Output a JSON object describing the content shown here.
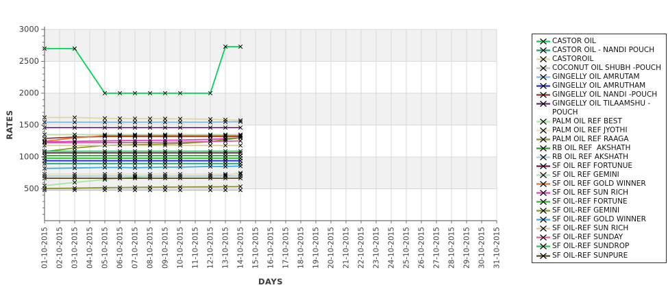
{
  "chart_data": {
    "type": "line",
    "title": "",
    "xlabel": "DAYS",
    "ylabel": "RATES",
    "x_categories": [
      "01-10-2015",
      "02-10-2015",
      "03-10-2015",
      "04-10-2015",
      "05-10-2015",
      "06-10-2015",
      "07-10-2015",
      "08-10-2015",
      "09-10-2015",
      "10-10-2015",
      "11-10-2015",
      "12-10-2015",
      "13-10-2015",
      "14-10-2015",
      "15-10-2015",
      "16-10-2015",
      "17-10-2015",
      "18-10-2015",
      "19-10-2015",
      "20-10-2015",
      "21-10-2015",
      "22-10-2015",
      "23-10-2015",
      "24-10-2015",
      "25-10-2015",
      "26-10-2015",
      "27-10-2015",
      "28-10-2015",
      "29-10-2015",
      "30-10-2015",
      "31-10-2015"
    ],
    "data_days": [
      1,
      3,
      5,
      6,
      7,
      8,
      9,
      10,
      12,
      13,
      14
    ],
    "ylim": [
      0,
      3000
    ],
    "yticks": [
      500,
      1000,
      1500,
      2000,
      2500,
      3000
    ],
    "y_minor_step": 100,
    "shaded_bands": [
      [
        500,
        1000
      ],
      [
        1500,
        2000
      ],
      [
        2500,
        3000
      ]
    ],
    "marker": "x",
    "marker_color": "#000000",
    "band_color": "#f1f1f1",
    "grid_color": "#d8d8d8",
    "axis_color": "#6e6e6e",
    "tick_label_color": "#3d3d3d",
    "legend_position": "right",
    "series": [
      {
        "name": "CASTOR OIL",
        "color": "#00d455",
        "values": [
          2700,
          2700,
          2000,
          2000,
          2000,
          2000,
          2000,
          2000,
          2000,
          2730,
          2730
        ]
      },
      {
        "name": "CASTOR OIL - NANDI POUCH",
        "color": "#1f9e74",
        "values": [
          895,
          895,
          895,
          895,
          895,
          895,
          895,
          895,
          895,
          895,
          895
        ]
      },
      {
        "name": "CASTOROIL",
        "color": "#e2d6a0",
        "values": [
          1620,
          1618,
          1606,
          1603,
          1601,
          1600,
          1599,
          1598,
          1592,
          1583,
          1574
        ]
      },
      {
        "name": "COCONUT OIL SHUBH -POUCH",
        "color": "#b9c2c4",
        "values": [
          480,
          480,
          480,
          480,
          480,
          480,
          480,
          480,
          480,
          480,
          480
        ]
      },
      {
        "name": "GINGELLY OIL AMRUTAM",
        "color": "#7db9e8",
        "values": [
          1545,
          1545,
          1545,
          1545,
          1545,
          1545,
          1545,
          1545,
          1545,
          1550,
          1552
        ]
      },
      {
        "name": "GINGELLY OIL AMRUTHAM",
        "color": "#2a2ad4",
        "values": [
          940,
          940,
          940,
          940,
          940,
          940,
          940,
          940,
          940,
          940,
          940
        ]
      },
      {
        "name": "GINGELLY OIL NANDI -POUCH",
        "color": "#8c3b2a",
        "values": [
          1290,
          1312,
          1320,
          1320,
          1320,
          1320,
          1320,
          1320,
          1320,
          1320,
          1320
        ]
      },
      {
        "name": "GINGELLY OIL TILAAMSHU -POUCH",
        "color": "#5e2a63",
        "values": [
          1460,
          1460,
          1460,
          1460,
          1460,
          1460,
          1460,
          1460,
          1460,
          1460,
          1460
        ]
      },
      {
        "name": "PALM OIL REF BEST",
        "color": "#a5e6a0",
        "values": [
          550,
          600,
          645,
          665,
          685,
          698,
          700,
          700,
          703,
          712,
          748
        ]
      },
      {
        "name": "PALM OIL REF JYOTHI",
        "color": "#e8dfba",
        "values": [
          730,
          730,
          730,
          730,
          730,
          730,
          730,
          730,
          730,
          730,
          730
        ]
      },
      {
        "name": "PALM OIL REF RAAGA",
        "color": "#8f8f2e",
        "values": [
          505,
          510,
          518,
          520,
          523,
          525,
          526,
          528,
          530,
          532,
          535
        ]
      },
      {
        "name": "RB OIL REF  AKSHATH",
        "color": "#2e9e2e",
        "values": [
          1020,
          1020,
          1020,
          1020,
          1020,
          1020,
          1020,
          1020,
          1020,
          1020,
          1020
        ]
      },
      {
        "name": "RB OIL REF AKSHATH",
        "color": "#a9cde0",
        "values": [
          700,
          700,
          700,
          700,
          700,
          700,
          700,
          700,
          700,
          700,
          700
        ]
      },
      {
        "name": "SF OIL REF FORTUNUE",
        "color": "#6b1a45",
        "values": [
          1063,
          1063,
          1063,
          1063,
          1063,
          1063,
          1063,
          1063,
          1063,
          1063,
          1063
        ]
      },
      {
        "name": "SF OIL REF GEMINI",
        "color": "#bcd9b0",
        "values": [
          1350,
          1350,
          1350,
          1350,
          1350,
          1350,
          1350,
          1350,
          1350,
          1350,
          1350
        ]
      },
      {
        "name": "SF OIL REF GOLD WINNER",
        "color": "#e0762e",
        "values": [
          1245,
          1300,
          1335,
          1335,
          1335,
          1335,
          1335,
          1335,
          1335,
          1335,
          1335
        ]
      },
      {
        "name": "SF OIL REF SUN RICH",
        "color": "#e23fc4",
        "values": [
          1235,
          1245,
          1252,
          1255,
          1258,
          1260,
          1262,
          1265,
          1275,
          1288,
          1300
        ]
      },
      {
        "name": "SF OIL-REF FORTUNE",
        "color": "#24c424",
        "values": [
          980,
          980,
          980,
          980,
          980,
          980,
          980,
          980,
          980,
          980,
          980
        ]
      },
      {
        "name": "SF OIL-REF GEMINI",
        "color": "#7e9c1f",
        "values": [
          1085,
          1140,
          1180,
          1186,
          1192,
          1198,
          1204,
          1210,
          1240,
          1272,
          1300
        ]
      },
      {
        "name": "SF OIL-REF GOLD WINNER",
        "color": "#36aee4",
        "values": [
          820,
          826,
          835,
          835,
          830,
          836,
          840,
          840,
          850,
          850,
          856
        ]
      },
      {
        "name": "SF OIL-REF SUN RICH",
        "color": "#d9c89e",
        "values": [
          1180,
          1180,
          1180,
          1180,
          1180,
          1180,
          1180,
          1180,
          1180,
          1180,
          1180
        ]
      },
      {
        "name": "SF OIL-REF SUNDAY",
        "color": "#d4609e",
        "values": [
          1222,
          1224,
          1226,
          1226,
          1228,
          1228,
          1230,
          1232,
          1240,
          1246,
          1252
        ]
      },
      {
        "name": "SF OIL-REF SUNDROP",
        "color": "#33bf66",
        "values": [
          1090,
          1090,
          1090,
          1090,
          1090,
          1090,
          1090,
          1090,
          1090,
          1090,
          1090
        ]
      },
      {
        "name": "SF OIL-REF SUNPURE",
        "color": "#59491c",
        "values": [
          665,
          665,
          665,
          665,
          665,
          665,
          665,
          665,
          665,
          665,
          665
        ]
      }
    ]
  }
}
